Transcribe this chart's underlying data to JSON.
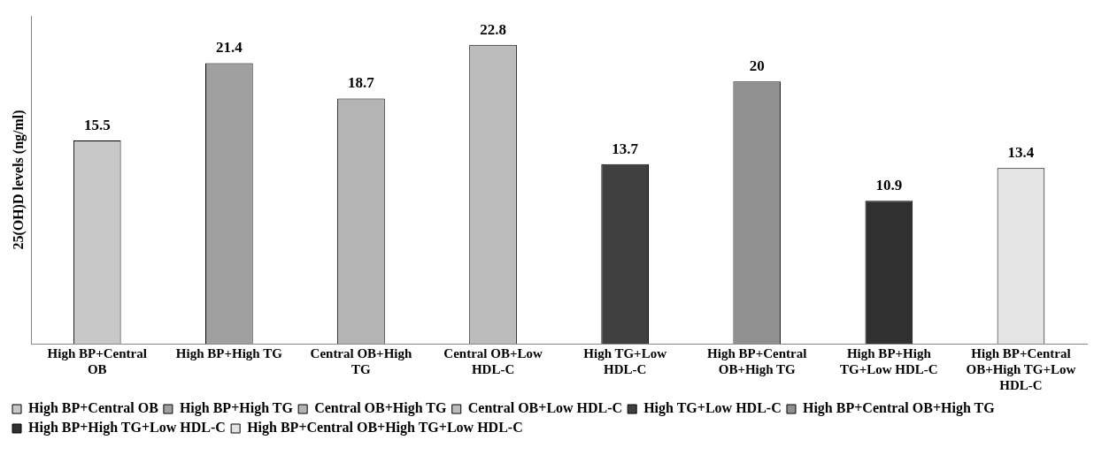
{
  "chart_data": {
    "type": "bar",
    "ylabel": "25(OH)D levels (ng/ml)",
    "categories": [
      "High BP+Central OB",
      "High BP+High TG",
      "Central OB+High TG",
      "Central OB+Low HDL-C",
      "High TG+Low HDL-C",
      "High BP+Central OB+High TG",
      "High BP+High TG+Low HDL-C",
      "High BP+Central OB+High TG+Low HDL-C"
    ],
    "series": [
      {
        "name": "High BP+Central OB",
        "color": "#c8c8c8",
        "values": [
          15.5,
          null,
          null,
          null,
          null,
          null,
          null,
          null
        ]
      },
      {
        "name": "High BP+High TG",
        "color": "#a0a0a0",
        "values": [
          null,
          21.4,
          null,
          null,
          null,
          null,
          null,
          null
        ]
      },
      {
        "name": "Central OB+High TG",
        "color": "#b4b4b4",
        "values": [
          null,
          null,
          18.7,
          null,
          null,
          null,
          null,
          null
        ]
      },
      {
        "name": "Central OB+Low HDL-C",
        "color": "#bcbcbc",
        "values": [
          null,
          null,
          null,
          22.8,
          null,
          null,
          null,
          null
        ]
      },
      {
        "name": "High TG+Low HDL-C",
        "color": "#404040",
        "values": [
          null,
          null,
          null,
          null,
          13.7,
          null,
          null,
          null
        ]
      },
      {
        "name": "High BP+Central OB+High TG",
        "color": "#909090",
        "values": [
          null,
          null,
          null,
          null,
          null,
          20,
          null,
          null
        ]
      },
      {
        "name": "High BP+High TG+Low HDL-C",
        "color": "#303030",
        "values": [
          null,
          null,
          null,
          null,
          null,
          null,
          10.9,
          null
        ]
      },
      {
        "name": "High BP+Central OB+High TG+Low HDL-C",
        "color": "#e4e4e4",
        "values": [
          null,
          null,
          null,
          null,
          null,
          null,
          null,
          13.4
        ]
      }
    ],
    "data_labels": true,
    "legend": "bottom",
    "grid": false,
    "tick_labels": "x"
  }
}
